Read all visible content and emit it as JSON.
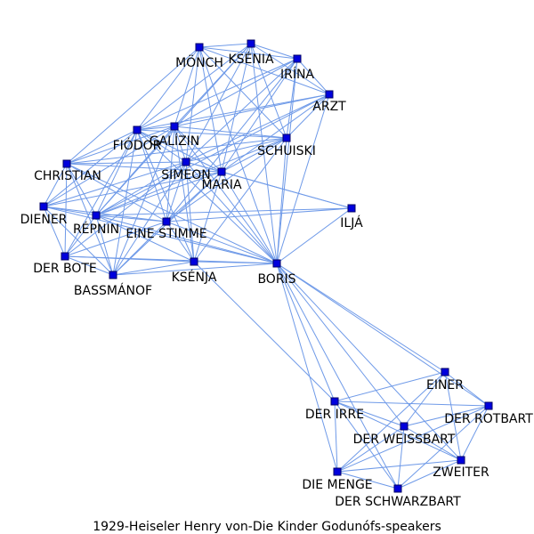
{
  "caption": "1929-Heiseler Henry von-Die Kinder Godunófs-speakers",
  "colors": {
    "edge": "#6f9ae8",
    "node": "#0000dd",
    "node_border": "#000066",
    "label": "#000000"
  },
  "nodes": [
    {
      "id": "monch",
      "label": "MÖNCH"
    },
    {
      "id": "ksenia",
      "label": "KSÉNIA"
    },
    {
      "id": "irina",
      "label": "IRÍNA"
    },
    {
      "id": "arzt",
      "label": "ARZT"
    },
    {
      "id": "galizin",
      "label": "GALÍZIN"
    },
    {
      "id": "fiodor",
      "label": "FIÓDOR"
    },
    {
      "id": "schuiski",
      "label": "SCHUISKI"
    },
    {
      "id": "christian",
      "label": "CHRISTIAN"
    },
    {
      "id": "simeon",
      "label": "SIMEON"
    },
    {
      "id": "maria",
      "label": "MARIA"
    },
    {
      "id": "diener",
      "label": "DIENER"
    },
    {
      "id": "repnin",
      "label": "RÉPNIN"
    },
    {
      "id": "eine_stimme",
      "label": "EINE STIMME"
    },
    {
      "id": "ilja",
      "label": "ILJÁ"
    },
    {
      "id": "der_bote",
      "label": "DER BOTE"
    },
    {
      "id": "ksenja",
      "label": "KSÉNJA"
    },
    {
      "id": "boris",
      "label": "BORIS"
    },
    {
      "id": "bassmanof",
      "label": "BASSMÁNOF"
    },
    {
      "id": "einer",
      "label": "EINER"
    },
    {
      "id": "der_irre",
      "label": "DER IRRE"
    },
    {
      "id": "der_rotbart",
      "label": "DER ROTBART"
    },
    {
      "id": "der_weissbart",
      "label": "DER WEISSBART"
    },
    {
      "id": "zweiter",
      "label": "ZWEITER"
    },
    {
      "id": "die_menge",
      "label": "DIE MENGE"
    },
    {
      "id": "der_schwarzbart",
      "label": "DER SCHWARZBART"
    }
  ],
  "edges": [
    [
      "monch",
      "ksenia"
    ],
    [
      "monch",
      "irina"
    ],
    [
      "monch",
      "arzt"
    ],
    [
      "monch",
      "galizin"
    ],
    [
      "monch",
      "fiodor"
    ],
    [
      "monch",
      "schuiski"
    ],
    [
      "monch",
      "simeon"
    ],
    [
      "monch",
      "maria"
    ],
    [
      "monch",
      "boris"
    ],
    [
      "monch",
      "christian"
    ],
    [
      "ksenia",
      "irina"
    ],
    [
      "ksenia",
      "arzt"
    ],
    [
      "ksenia",
      "galizin"
    ],
    [
      "ksenia",
      "fiodor"
    ],
    [
      "ksenia",
      "schuiski"
    ],
    [
      "ksenia",
      "simeon"
    ],
    [
      "ksenia",
      "maria"
    ],
    [
      "ksenia",
      "boris"
    ],
    [
      "ksenia",
      "repnin"
    ],
    [
      "irina",
      "arzt"
    ],
    [
      "irina",
      "galizin"
    ],
    [
      "irina",
      "fiodor"
    ],
    [
      "irina",
      "schuiski"
    ],
    [
      "irina",
      "simeon"
    ],
    [
      "irina",
      "maria"
    ],
    [
      "irina",
      "boris"
    ],
    [
      "irina",
      "eine_stimme"
    ],
    [
      "arzt",
      "galizin"
    ],
    [
      "arzt",
      "fiodor"
    ],
    [
      "arzt",
      "schuiski"
    ],
    [
      "arzt",
      "simeon"
    ],
    [
      "arzt",
      "maria"
    ],
    [
      "arzt",
      "boris"
    ],
    [
      "arzt",
      "repnin"
    ],
    [
      "galizin",
      "fiodor"
    ],
    [
      "galizin",
      "schuiski"
    ],
    [
      "galizin",
      "simeon"
    ],
    [
      "galizin",
      "maria"
    ],
    [
      "galizin",
      "boris"
    ],
    [
      "galizin",
      "christian"
    ],
    [
      "galizin",
      "repnin"
    ],
    [
      "galizin",
      "eine_stimme"
    ],
    [
      "galizin",
      "ksenja"
    ],
    [
      "galizin",
      "diener"
    ],
    [
      "galizin",
      "bassmanof"
    ],
    [
      "fiodor",
      "schuiski"
    ],
    [
      "fiodor",
      "simeon"
    ],
    [
      "fiodor",
      "maria"
    ],
    [
      "fiodor",
      "boris"
    ],
    [
      "fiodor",
      "christian"
    ],
    [
      "fiodor",
      "diener"
    ],
    [
      "fiodor",
      "repnin"
    ],
    [
      "fiodor",
      "eine_stimme"
    ],
    [
      "fiodor",
      "ksenja"
    ],
    [
      "fiodor",
      "der_bote"
    ],
    [
      "fiodor",
      "bassmanof"
    ],
    [
      "schuiski",
      "simeon"
    ],
    [
      "schuiski",
      "maria"
    ],
    [
      "schuiski",
      "boris"
    ],
    [
      "schuiski",
      "repnin"
    ],
    [
      "schuiski",
      "eine_stimme"
    ],
    [
      "schuiski",
      "ksenja"
    ],
    [
      "schuiski",
      "christian"
    ],
    [
      "christian",
      "simeon"
    ],
    [
      "christian",
      "maria"
    ],
    [
      "christian",
      "diener"
    ],
    [
      "christian",
      "repnin"
    ],
    [
      "christian",
      "der_bote"
    ],
    [
      "christian",
      "bassmanof"
    ],
    [
      "christian",
      "eine_stimme"
    ],
    [
      "christian",
      "boris"
    ],
    [
      "simeon",
      "maria"
    ],
    [
      "simeon",
      "boris"
    ],
    [
      "simeon",
      "repnin"
    ],
    [
      "simeon",
      "eine_stimme"
    ],
    [
      "simeon",
      "ksenja"
    ],
    [
      "simeon",
      "diener"
    ],
    [
      "simeon",
      "der_bote"
    ],
    [
      "simeon",
      "bassmanof"
    ],
    [
      "simeon",
      "ilja"
    ],
    [
      "maria",
      "boris"
    ],
    [
      "maria",
      "repnin"
    ],
    [
      "maria",
      "eine_stimme"
    ],
    [
      "maria",
      "ksenja"
    ],
    [
      "maria",
      "ilja"
    ],
    [
      "maria",
      "diener"
    ],
    [
      "maria",
      "bassmanof"
    ],
    [
      "diener",
      "repnin"
    ],
    [
      "diener",
      "der_bote"
    ],
    [
      "diener",
      "bassmanof"
    ],
    [
      "diener",
      "eine_stimme"
    ],
    [
      "diener",
      "boris"
    ],
    [
      "repnin",
      "eine_stimme"
    ],
    [
      "repnin",
      "der_bote"
    ],
    [
      "repnin",
      "bassmanof"
    ],
    [
      "repnin",
      "ksenja"
    ],
    [
      "repnin",
      "boris"
    ],
    [
      "repnin",
      "ilja"
    ],
    [
      "eine_stimme",
      "boris"
    ],
    [
      "eine_stimme",
      "ksenja"
    ],
    [
      "eine_stimme",
      "bassmanof"
    ],
    [
      "eine_stimme",
      "der_bote"
    ],
    [
      "eine_stimme",
      "ilja"
    ],
    [
      "der_bote",
      "ksenja"
    ],
    [
      "der_bote",
      "boris"
    ],
    [
      "der_bote",
      "bassmanof"
    ],
    [
      "bassmanof",
      "boris"
    ],
    [
      "bassmanof",
      "ksenja"
    ],
    [
      "ksenja",
      "boris"
    ],
    [
      "ksenja",
      "der_irre"
    ],
    [
      "ilja",
      "boris"
    ],
    [
      "boris",
      "der_irre"
    ],
    [
      "boris",
      "einer"
    ],
    [
      "boris",
      "der_weissbart"
    ],
    [
      "boris",
      "der_rotbart"
    ],
    [
      "boris",
      "zweiter"
    ],
    [
      "boris",
      "die_menge"
    ],
    [
      "boris",
      "der_schwarzbart"
    ],
    [
      "einer",
      "der_irre"
    ],
    [
      "einer",
      "der_rotbart"
    ],
    [
      "einer",
      "der_weissbart"
    ],
    [
      "einer",
      "zweiter"
    ],
    [
      "einer",
      "die_menge"
    ],
    [
      "der_irre",
      "der_rotbart"
    ],
    [
      "der_irre",
      "der_weissbart"
    ],
    [
      "der_irre",
      "zweiter"
    ],
    [
      "der_irre",
      "die_menge"
    ],
    [
      "der_irre",
      "der_schwarzbart"
    ],
    [
      "der_rotbart",
      "der_weissbart"
    ],
    [
      "der_rotbart",
      "zweiter"
    ],
    [
      "der_rotbart",
      "die_menge"
    ],
    [
      "der_rotbart",
      "der_schwarzbart"
    ],
    [
      "der_weissbart",
      "zweiter"
    ],
    [
      "der_weissbart",
      "die_menge"
    ],
    [
      "der_weissbart",
      "der_schwarzbart"
    ],
    [
      "zweiter",
      "die_menge"
    ],
    [
      "zweiter",
      "der_schwarzbart"
    ],
    [
      "die_menge",
      "der_schwarzbart"
    ]
  ]
}
